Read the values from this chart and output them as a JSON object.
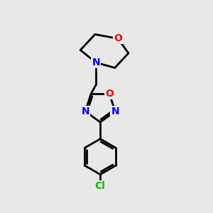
{
  "background_color": "#e8e8e8",
  "bond_color": "#000000",
  "bond_width": 2.0,
  "atom_colors": {
    "O": "#ff0000",
    "N": "#0000ff",
    "Cl": "#00bb00",
    "C": "#000000"
  },
  "font_size_atoms": 10,
  "font_size_cl": 10,
  "figsize": [
    3.0,
    3.0
  ],
  "dpi": 100
}
